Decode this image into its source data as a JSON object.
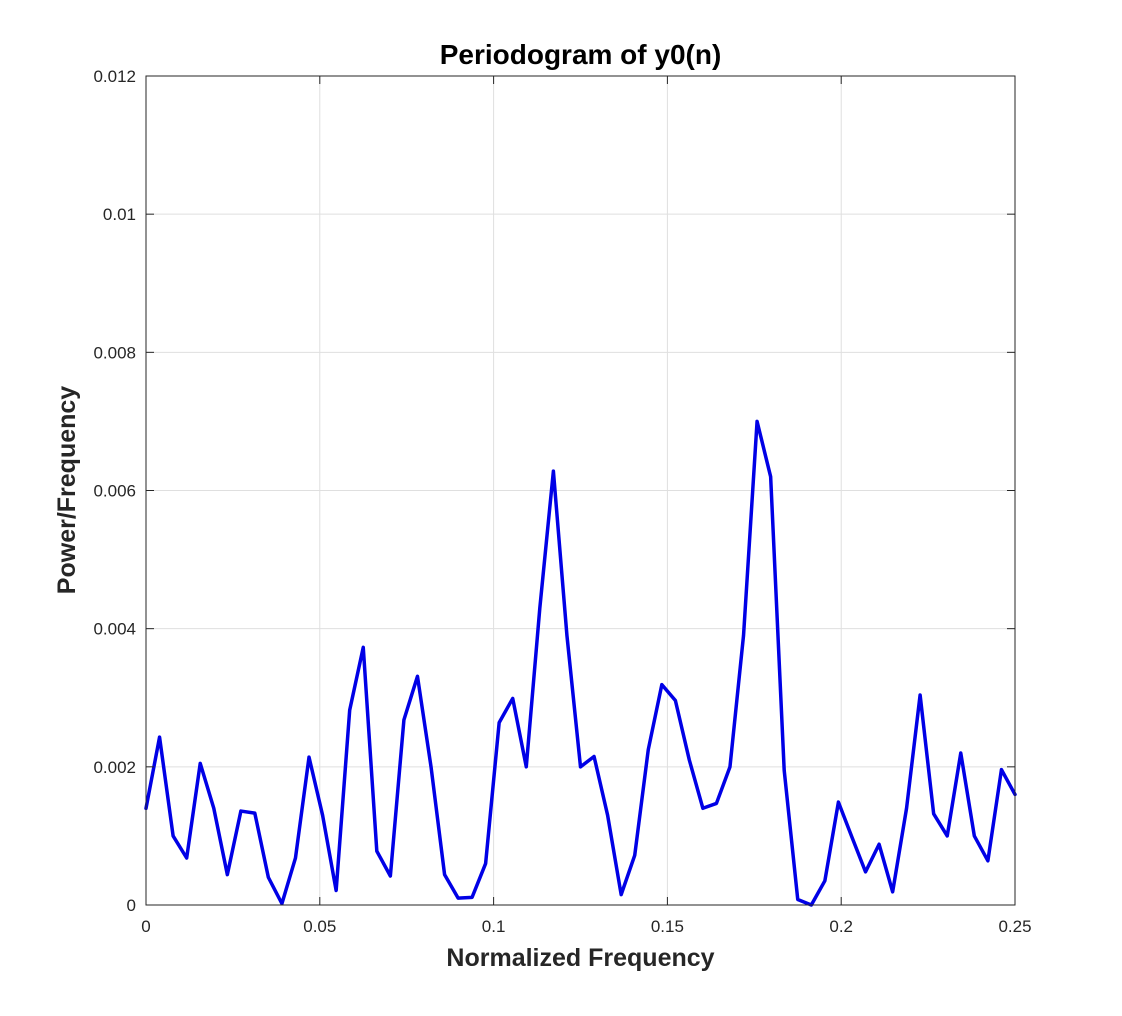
{
  "chart_data": {
    "type": "line",
    "title": "Periodogram of y0(n)",
    "xlabel": "Normalized Frequency",
    "ylabel": "Power/Frequency",
    "xlim": [
      0,
      0.25
    ],
    "ylim": [
      0,
      0.012
    ],
    "xticks": [
      0,
      0.05,
      0.1,
      0.15,
      0.2,
      0.25
    ],
    "xtick_labels": [
      "0",
      "0.05",
      "0.1",
      "0.15",
      "0.2",
      "0.25"
    ],
    "yticks": [
      0,
      0.002,
      0.004,
      0.006,
      0.008,
      0.01,
      0.012
    ],
    "ytick_labels": [
      "0",
      "0.002",
      "0.004",
      "0.006",
      "0.008",
      "0.01",
      "0.012"
    ],
    "grid": true,
    "series": [
      {
        "color": "#0000e6",
        "x": [
          0,
          0.0039,
          0.0078,
          0.0117,
          0.0156,
          0.0195,
          0.0234,
          0.0273,
          0.0313,
          0.0352,
          0.0391,
          0.043,
          0.0469,
          0.0508,
          0.0547,
          0.0586,
          0.0625,
          0.0664,
          0.0703,
          0.0742,
          0.0781,
          0.082,
          0.0859,
          0.0898,
          0.0938,
          0.0977,
          0.1016,
          0.1055,
          0.1094,
          0.1133,
          0.1172,
          0.1211,
          0.125,
          0.1289,
          0.1328,
          0.1367,
          0.1406,
          0.1445,
          0.1484,
          0.1523,
          0.1563,
          0.1602,
          0.1641,
          0.168,
          0.1719,
          0.1758,
          0.1797,
          0.1836,
          0.1875,
          0.1914,
          0.1953,
          0.1992,
          0.2031,
          0.207,
          0.2109,
          0.2148,
          0.2188,
          0.2227,
          0.2266,
          0.2305,
          0.2344,
          0.2383,
          0.2422,
          0.2461,
          0.25
        ],
        "y": [
          0.0014,
          0.00243,
          0.001,
          0.00068,
          0.00205,
          0.0014,
          0.00044,
          0.00136,
          0.00133,
          0.0004,
          2e-05,
          0.00068,
          0.00214,
          0.0013,
          0.00021,
          0.00282,
          0.00373,
          0.00078,
          0.00042,
          0.00268,
          0.00331,
          0.002,
          0.00044,
          0.0001,
          0.00011,
          0.0006,
          0.00264,
          0.00299,
          0.002,
          0.0043,
          0.00628,
          0.0039,
          0.002,
          0.00215,
          0.0013,
          0.00015,
          0.00072,
          0.00225,
          0.00319,
          0.00296,
          0.0021,
          0.0014,
          0.00147,
          0.002,
          0.0039,
          0.007,
          0.0062,
          0.00195,
          8e-05,
          0.0,
          0.00035,
          0.00149,
          0.00098,
          0.00048,
          0.00088,
          0.00019,
          0.0014,
          0.00304,
          0.00132,
          0.001,
          0.0022,
          0.001,
          0.00064,
          0.00196,
          0.0016
        ]
      }
    ]
  }
}
